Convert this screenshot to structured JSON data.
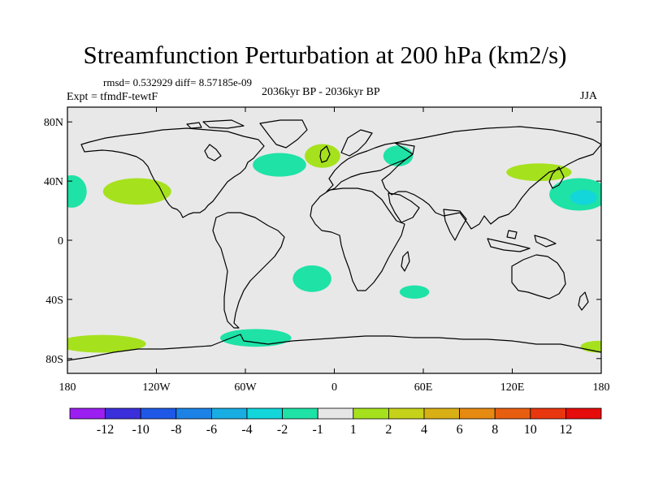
{
  "chart_data": {
    "type": "contour-map",
    "title": "Streamfunction Perturbation at 200 hPa (km2/s)",
    "stats_label": "rmsd= 0.532929 diff= 8.57185e-09",
    "experiment_label": "Expt = tfmdF-tewtF",
    "period_label": "2036kyr BP - 2036kyr BP",
    "season_label": "JJA",
    "x_ticks": [
      {
        "lon": -180,
        "label": "180"
      },
      {
        "lon": -120,
        "label": "120W"
      },
      {
        "lon": -60,
        "label": "60W"
      },
      {
        "lon": 0,
        "label": "0"
      },
      {
        "lon": 60,
        "label": "60E"
      },
      {
        "lon": 120,
        "label": "120E"
      },
      {
        "lon": 180,
        "label": "180"
      }
    ],
    "y_ticks": [
      {
        "lat": 80,
        "label": "80N"
      },
      {
        "lat": 40,
        "label": "40N"
      },
      {
        "lat": 0,
        "label": "0"
      },
      {
        "lat": -40,
        "label": "40S"
      },
      {
        "lat": -80,
        "label": "80S"
      }
    ],
    "lon_range": [
      -180,
      180
    ],
    "lat_range": [
      -90,
      90
    ],
    "colorbar": {
      "levels": [
        "-12",
        "-10",
        "-8",
        "-6",
        "-4",
        "-2",
        "-1",
        "1",
        "2",
        "4",
        "6",
        "8",
        "10",
        "12"
      ],
      "colors": [
        "#9b1ff0",
        "#3b2fdc",
        "#1f58e6",
        "#1c82e6",
        "#18aee4",
        "#12d6da",
        "#1ee2a6",
        "#e6e6e6",
        "#a6e11e",
        "#c6d21a",
        "#d8b016",
        "#e68a12",
        "#e85e10",
        "#e8360e",
        "#e60c0c"
      ]
    },
    "anomalies": [
      {
        "name": "north-atlantic-negative",
        "lon": -37,
        "lat": 51,
        "dlon": 18,
        "dlat": 8,
        "level": -2
      },
      {
        "name": "nw-pacific-negative",
        "lon": 165,
        "lat": 31,
        "dlon": 20,
        "dlat": 11,
        "level": -2
      },
      {
        "name": "nw-pacific-negative-core",
        "lon": 168,
        "lat": 29,
        "dlon": 9,
        "dlat": 5,
        "level": -4
      },
      {
        "name": "pacific-west-negative",
        "lon": -177,
        "lat": 33,
        "dlon": 10,
        "dlat": 11,
        "level": -2
      },
      {
        "name": "caspian-negative",
        "lon": 43,
        "lat": 57,
        "dlon": 10,
        "dlat": 7,
        "level": -2
      },
      {
        "name": "south-atlantic-negative",
        "lon": -15,
        "lat": -26,
        "dlon": 13,
        "dlat": 9,
        "level": -2
      },
      {
        "name": "indian-ocean-negative",
        "lon": 54,
        "lat": -35,
        "dlon": 10,
        "dlat": 4.5,
        "level": -2
      },
      {
        "name": "drake-passage-negative",
        "lon": -53,
        "lat": -66,
        "dlon": 24,
        "dlat": 6,
        "level": -2
      },
      {
        "name": "europe-positive",
        "lon": -8,
        "lat": 57,
        "dlon": 12,
        "dlat": 8,
        "level": 2
      },
      {
        "name": "california-positive",
        "lon": -133,
        "lat": 33,
        "dlon": 23,
        "dlat": 9,
        "level": 2
      },
      {
        "name": "east-asia-positive",
        "lon": 138,
        "lat": 46,
        "dlon": 22,
        "dlat": 6,
        "level": 2
      },
      {
        "name": "south-pacific-positive",
        "lon": -157,
        "lat": -70,
        "dlon": 30,
        "dlat": 6,
        "level": 2
      },
      {
        "name": "southwest-pacific-positive",
        "lon": 178,
        "lat": -72,
        "dlon": 12,
        "dlat": 4,
        "level": 2
      }
    ]
  }
}
